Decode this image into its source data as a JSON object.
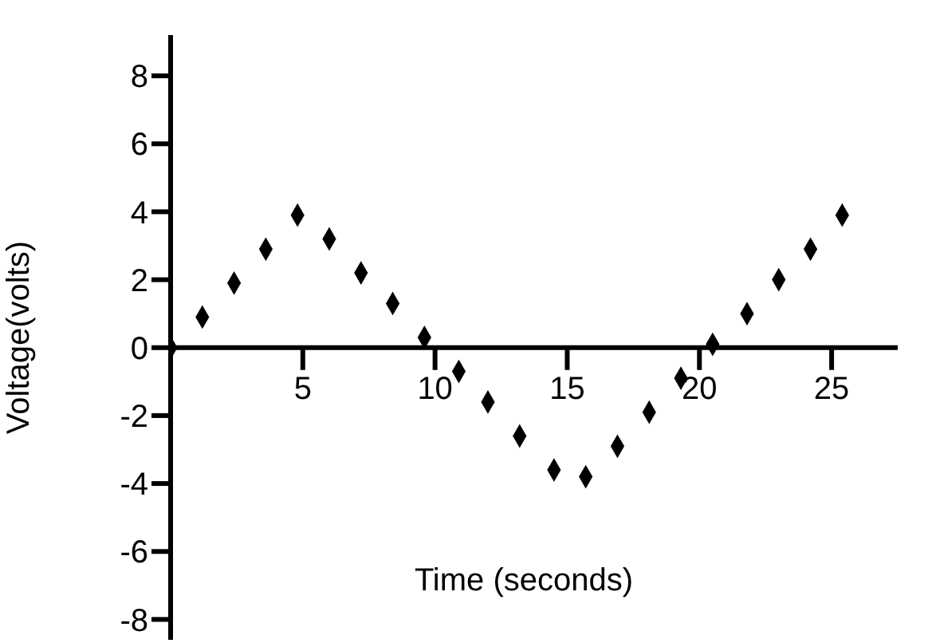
{
  "chart_data": {
    "type": "scatter",
    "xlabel": "Time (seconds)",
    "ylabel": "Voltage(volts)",
    "x": [
      0,
      1.2,
      2.4,
      3.6,
      4.8,
      6,
      7.2,
      8.4,
      9.6,
      10.9,
      12,
      13.2,
      14.5,
      15.7,
      16.9,
      18.1,
      19.3,
      20.5,
      21.8,
      23,
      24.2,
      25.4
    ],
    "series": [
      {
        "color": "#000000",
        "values": [
          0,
          0.9,
          1.9,
          2.9,
          3.9,
          3.2,
          2.2,
          1.3,
          0.3,
          -0.7,
          -1.6,
          -2.6,
          -3.6,
          -3.8,
          -2.9,
          -1.9,
          -0.9,
          0.1,
          1,
          2,
          2.9,
          3.9
        ]
      }
    ],
    "xlim": [
      0,
      27.5
    ],
    "ylim": [
      -8.6,
      9.2
    ],
    "xticks": [
      5,
      10,
      15,
      20,
      25
    ],
    "yticks": [
      -8,
      -6,
      -4,
      -2,
      0,
      2,
      4,
      6,
      8
    ],
    "marker": "diamond",
    "grid": false,
    "legend": false
  }
}
